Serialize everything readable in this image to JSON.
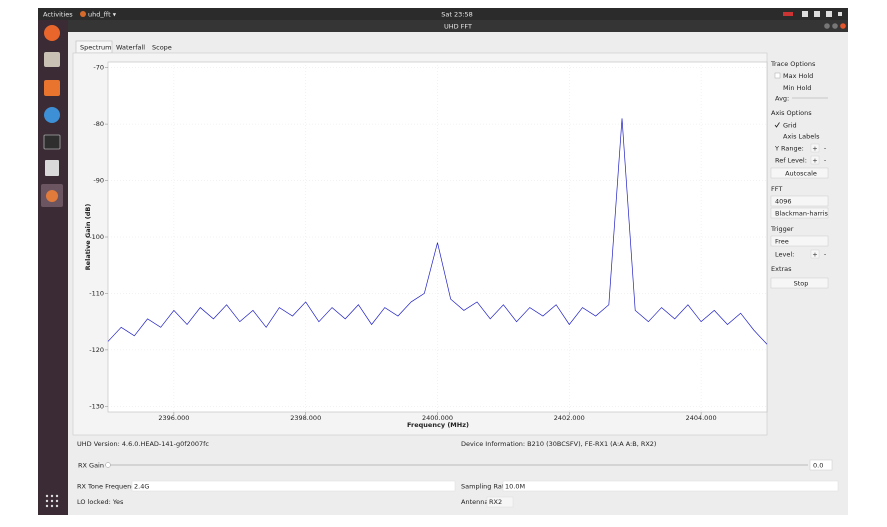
{
  "top_bar": {
    "activities": "Activities",
    "app": "uhd_fft ▾",
    "clock": "Sat 23:58"
  },
  "window": {
    "title": "UHD FFT",
    "tabs": [
      "Spectrum",
      "Waterfall",
      "Scope"
    ]
  },
  "chart_data": {
    "type": "line",
    "xlabel": "Frequency (MHz)",
    "ylabel": "Relative Gain (dB)",
    "x": [
      2395.0,
      2395.2,
      2395.4,
      2395.6,
      2395.8,
      2396.0,
      2396.2,
      2396.4,
      2396.6,
      2396.8,
      2397.0,
      2397.2,
      2397.4,
      2397.6,
      2397.8,
      2398.0,
      2398.2,
      2398.4,
      2398.6,
      2398.8,
      2399.0,
      2399.2,
      2399.4,
      2399.6,
      2399.8,
      2400.0,
      2400.2,
      2400.4,
      2400.6,
      2400.8,
      2401.0,
      2401.2,
      2401.4,
      2401.6,
      2401.8,
      2402.0,
      2402.2,
      2402.4,
      2402.6,
      2402.8,
      2403.0,
      2403.2,
      2403.4,
      2403.6,
      2403.8,
      2404.0,
      2404.2,
      2404.4,
      2404.6,
      2404.8,
      2405.0
    ],
    "series": [
      {
        "color": "#1f1fc4",
        "values": [
          -118.5,
          -116,
          -117.5,
          -114.5,
          -116,
          -113,
          -115.5,
          -112.5,
          -114.5,
          -112,
          -115,
          -113,
          -116,
          -112.5,
          -114,
          -111.5,
          -115,
          -112.5,
          -114.5,
          -112,
          -115.5,
          -112.5,
          -114,
          -111.5,
          -110,
          -101,
          -111,
          -113,
          -111.5,
          -114.5,
          -112,
          -115,
          -112.5,
          -114,
          -112,
          -115.5,
          -112.5,
          -114,
          -112,
          -79,
          -113,
          -115,
          -112.5,
          -114.5,
          -112,
          -115,
          -113,
          -115.5,
          -113.5,
          -116.5,
          -119
        ]
      }
    ],
    "xlim": [
      2395,
      2405
    ],
    "ylim": [
      -131,
      -69
    ],
    "xticks": [
      {
        "value": 2396,
        "label": "2396.000"
      },
      {
        "value": 2398,
        "label": "2398.000"
      },
      {
        "value": 2400,
        "label": "2400.000"
      },
      {
        "value": 2402,
        "label": "2402.000"
      },
      {
        "value": 2404,
        "label": "2404.000"
      }
    ],
    "yticks": [
      -70,
      -80,
      -90,
      -100,
      -110,
      -120,
      -130
    ],
    "grid": true
  },
  "controls": {
    "trace_options": "Trace Options",
    "max_hold": "Max Hold",
    "min_hold": "Min Hold",
    "avg": "Avg:",
    "axis_options": "Axis Options",
    "grid": "Grid",
    "axis_labels": "Axis Labels",
    "y_range": "Y Range:",
    "ref_level": "Ref Level:",
    "plus": "+",
    "minus": "-",
    "autoscale": "Autoscale",
    "fft": "FFT",
    "fft_size": "4096",
    "fft_window": "Blackman-harris",
    "trigger": "Trigger",
    "trigger_mode": "Free",
    "level": "Level:",
    "extras": "Extras",
    "stop": "Stop"
  },
  "status": {
    "uhd_version": "UHD Version: 4.6.0.HEAD-141-g0f2007fc",
    "device_info": "Device Information: B210 (30BCSFV), FE-RX1 (A:A A:B, RX2)",
    "rx_gain": "RX Gain",
    "rx_gain_value": "0.0",
    "rx_tone_label": "RX Tone Frequency:",
    "rx_tone_value": "2.4G",
    "sampling_label": "Sampling Rate:",
    "sampling_value": "10.0M",
    "lo_locked": "LO locked: Yes",
    "antenna_label": "Antenna:",
    "antenna_value": "RX2"
  }
}
